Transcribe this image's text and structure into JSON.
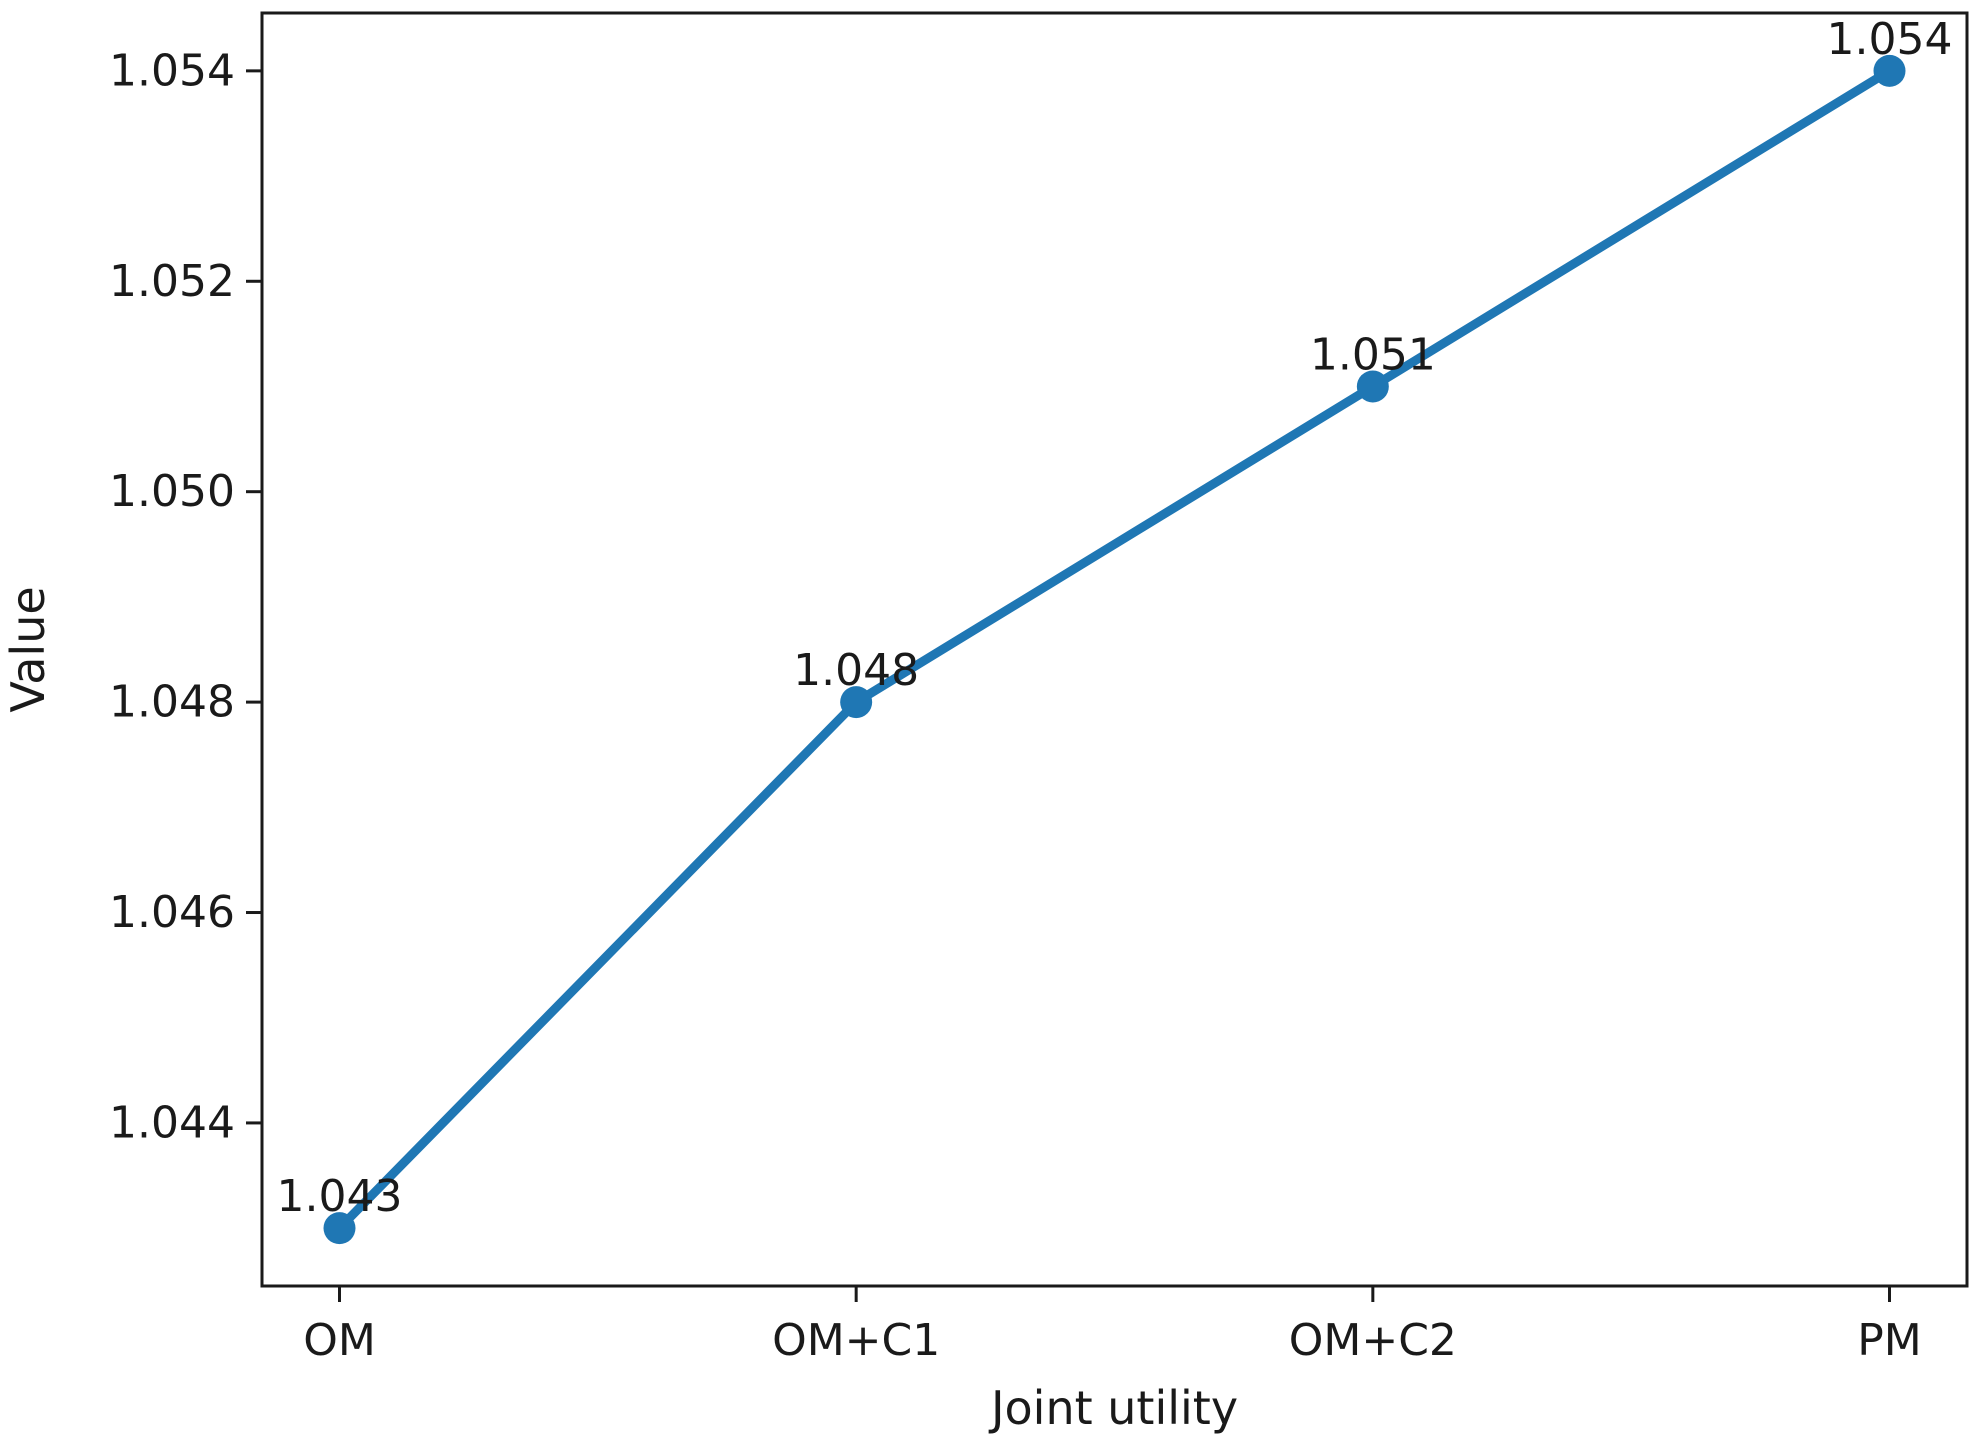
{
  "chart_data": {
    "type": "line",
    "title": "",
    "xlabel": "Joint utility",
    "ylabel": "Value",
    "categories": [
      "OM",
      "OM+C1",
      "OM+C2",
      "PM"
    ],
    "series": [
      {
        "name": "Value",
        "values": [
          1.043,
          1.048,
          1.051,
          1.054
        ],
        "point_labels": [
          "1.043",
          "1.048",
          "1.051",
          "1.054"
        ]
      }
    ],
    "yticks": {
      "values": [
        1.044,
        1.046,
        1.048,
        1.05,
        1.052,
        1.054
      ],
      "labels": [
        "1.044",
        "1.046",
        "1.048",
        "1.050",
        "1.052",
        "1.054"
      ]
    },
    "xlim": [
      -0.15,
      3.15
    ],
    "ylim": [
      1.04245,
      1.05455
    ],
    "grid": false,
    "legend": false,
    "line_color": "#1f77b4",
    "marker": "circle",
    "text_color": "#1a1a1a",
    "spine_color": "#1a1a1a"
  }
}
